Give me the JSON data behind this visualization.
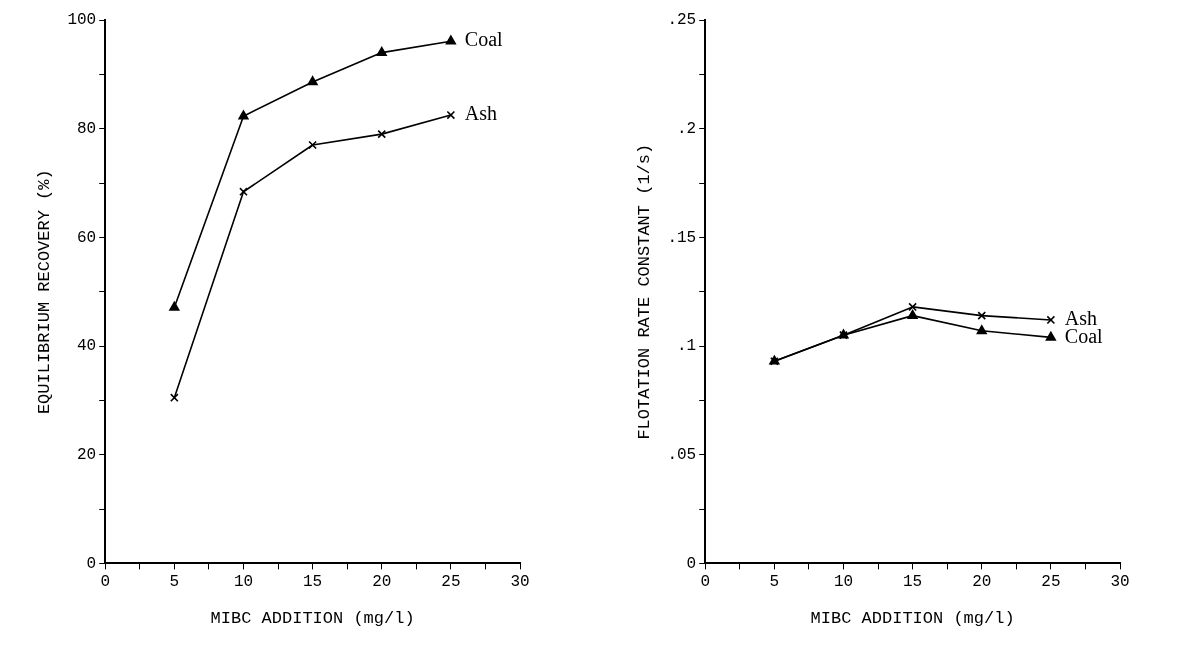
{
  "chart_data": [
    {
      "type": "line",
      "xlabel": "MIBC ADDITION (mg/l)",
      "ylabel": "EQUILIBRIUM RECOVERY (%)",
      "x": [
        5,
        10,
        15,
        20,
        25
      ],
      "series": [
        {
          "name": "Coal",
          "color": "#000000",
          "marker": "triangle",
          "values": [
            47.1,
            82.3,
            88.6,
            94.0,
            96.1
          ]
        },
        {
          "name": "Ash",
          "color": "#000000",
          "marker": "cross",
          "values": [
            30.5,
            68.4,
            77.0,
            79.0,
            82.5
          ]
        }
      ],
      "xlim": [
        0,
        30
      ],
      "xticks": [
        0,
        {
          "value": 2.5,
          "label": null
        },
        5,
        {
          "value": 7.5,
          "label": null
        },
        10,
        {
          "value": 12.5,
          "label": null
        },
        15,
        {
          "value": 17.5,
          "label": null
        },
        20,
        {
          "value": 22.5,
          "label": null
        },
        25,
        {
          "value": 27.5,
          "label": null
        },
        30
      ],
      "ylim": [
        0,
        100
      ],
      "yticks": [
        0,
        {
          "value": 10,
          "label": null
        },
        20,
        {
          "value": 30,
          "label": null
        },
        40,
        {
          "value": 50,
          "label": null
        },
        60,
        {
          "value": 70,
          "label": null
        },
        80,
        {
          "value": 90,
          "label": null
        },
        100
      ],
      "grid": false,
      "legend": false,
      "line_style": "solid"
    },
    {
      "type": "line",
      "xlabel": "MIBC ADDITION (mg/l)",
      "ylabel": "FLOTATION RATE CONSTANT (1/s)",
      "x": [
        5,
        10,
        15,
        20,
        25
      ],
      "series": [
        {
          "name": "Ash",
          "color": "#000000",
          "marker": "cross",
          "values": [
            0.093,
            0.105,
            0.118,
            0.114,
            0.112
          ]
        },
        {
          "name": "Coal",
          "color": "#000000",
          "marker": "triangle",
          "values": [
            0.093,
            0.105,
            0.114,
            0.107,
            0.104
          ]
        }
      ],
      "xlim": [
        0,
        30
      ],
      "xticks": [
        0,
        {
          "value": 2.5,
          "label": null
        },
        5,
        {
          "value": 7.5,
          "label": null
        },
        10,
        {
          "value": 12.5,
          "label": null
        },
        15,
        {
          "value": 17.5,
          "label": null
        },
        20,
        {
          "value": 22.5,
          "label": null
        },
        25,
        {
          "value": 27.5,
          "label": null
        },
        30
      ],
      "ylim": [
        0,
        0.25
      ],
      "yticks": [
        0,
        {
          "value": 0.025,
          "label": null
        },
        {
          "value": 0.05,
          "label": ".05"
        },
        {
          "value": 0.075,
          "label": null
        },
        {
          "value": 0.1,
          "label": ".1"
        },
        {
          "value": 0.125,
          "label": null
        },
        {
          "value": 0.15,
          "label": ".15"
        },
        {
          "value": 0.175,
          "label": null
        },
        {
          "value": 0.2,
          "label": ".2"
        },
        {
          "value": 0.225,
          "label": null
        },
        {
          "value": 0.25,
          "label": ".25"
        }
      ],
      "grid": false,
      "legend": false,
      "line_style": "solid"
    }
  ]
}
